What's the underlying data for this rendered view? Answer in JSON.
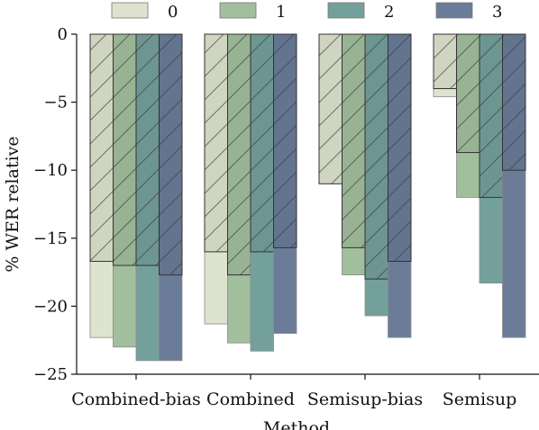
{
  "chart_data": {
    "type": "bar",
    "xlabel": "Method",
    "ylabel": "% WER relative",
    "ylim": [
      -25,
      0
    ],
    "yticks": [
      0,
      -5,
      -10,
      -15,
      -20,
      -25
    ],
    "ytick_labels": [
      "0",
      "−5",
      "−10",
      "−15",
      "−20",
      "−25"
    ],
    "categories": [
      "Combined-bias",
      "Combined",
      "Semisup-bias",
      "Semisup"
    ],
    "legend_position": "top",
    "series": [
      {
        "name": "0",
        "color": "#dde3cf",
        "total": [
          -22.3,
          -21.3,
          -10.7,
          -4.6
        ],
        "hatched": [
          -16.7,
          -16.0,
          -11.0,
          -4.0
        ]
      },
      {
        "name": "1",
        "color": "#a1bf9d",
        "total": [
          -23.0,
          -22.7,
          -17.7,
          -12.0
        ],
        "hatched": [
          -17.0,
          -17.7,
          -15.7,
          -8.7
        ]
      },
      {
        "name": "2",
        "color": "#74a09c",
        "total": [
          -24.0,
          -23.3,
          -20.7,
          -18.3
        ],
        "hatched": [
          -17.0,
          -16.0,
          -18.0,
          -12.0
        ]
      },
      {
        "name": "3",
        "color": "#6a7c98",
        "total": [
          -24.0,
          -22.0,
          -22.3,
          -22.3
        ],
        "hatched": [
          -17.7,
          -15.7,
          -16.7,
          -10.0
        ]
      }
    ]
  }
}
